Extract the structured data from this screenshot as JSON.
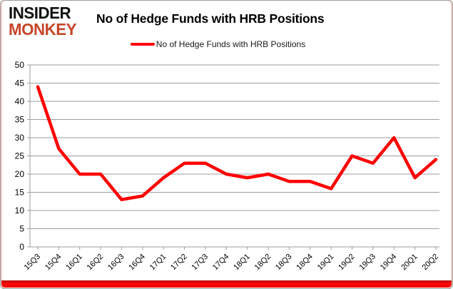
{
  "logo": {
    "line1": "INSIDER",
    "line2": "MONKEY"
  },
  "header": {
    "title": "No of Hedge Funds with HRB Positions"
  },
  "legend": {
    "label": "No of Hedge Funds with HRB Positions"
  },
  "colors": {
    "line": "#fe0000",
    "grid": "#9c9c9c",
    "axis_text": "#000000",
    "logo_black": "#111111",
    "logo_red": "#c64629",
    "bottom_bar": "#e60000"
  },
  "chart_data": {
    "type": "line",
    "title": "No of Hedge Funds with HRB Positions",
    "categories": [
      "15Q3",
      "15Q4",
      "16Q1",
      "16Q2",
      "16Q3",
      "16Q4",
      "17Q1",
      "17Q2",
      "17Q3",
      "17Q4",
      "18Q1",
      "18Q2",
      "18Q3",
      "18Q4",
      "19Q1",
      "19Q2",
      "19Q3",
      "19Q4",
      "20Q1",
      "20Q2"
    ],
    "series": [
      {
        "name": "No of Hedge Funds with HRB Positions",
        "values": [
          44,
          27,
          20,
          20,
          13,
          14,
          19,
          23,
          23,
          20,
          19,
          20,
          18,
          18,
          16,
          25,
          23,
          30,
          19,
          24
        ]
      }
    ],
    "xlabel": "",
    "ylabel": "",
    "ylim": [
      0,
      50
    ],
    "ytick_step": 5,
    "grid": true,
    "legend_position": "top-center"
  }
}
